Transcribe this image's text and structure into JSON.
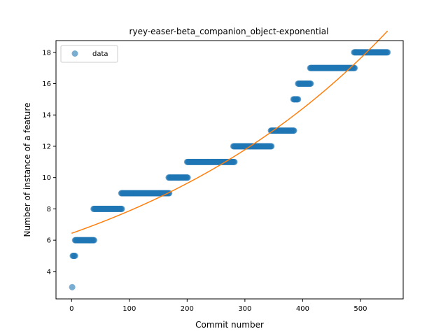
{
  "chart_data": {
    "type": "scatter",
    "title": "ryey-easer-beta_companion_object-exponential",
    "xlabel": "Commit number",
    "ylabel": "Number of instance of a feature",
    "xlim": [
      -27,
      574
    ],
    "ylim": [
      2.25,
      18.75
    ],
    "xticks": [
      0,
      100,
      200,
      300,
      400,
      500
    ],
    "yticks": [
      4,
      6,
      8,
      10,
      12,
      14,
      16,
      18
    ],
    "legend": {
      "position": "top-left",
      "entries": [
        "data"
      ]
    },
    "colors": {
      "data": "#1f77b4",
      "fit": "#ff7f0e"
    },
    "series": [
      {
        "name": "data",
        "kind": "points",
        "segments": [
          {
            "x_start": 1,
            "x_end": 1,
            "y": 3
          },
          {
            "x_start": 2,
            "x_end": 6,
            "y": 5
          },
          {
            "x_start": 6,
            "x_end": 39,
            "y": 6
          },
          {
            "x_start": 38,
            "x_end": 87,
            "y": 8
          },
          {
            "x_start": 86,
            "x_end": 169,
            "y": 9
          },
          {
            "x_start": 168,
            "x_end": 201,
            "y": 10
          },
          {
            "x_start": 200,
            "x_end": 282,
            "y": 11
          },
          {
            "x_start": 280,
            "x_end": 346,
            "y": 12
          },
          {
            "x_start": 345,
            "x_end": 385,
            "y": 13
          },
          {
            "x_start": 384,
            "x_end": 392,
            "y": 15
          },
          {
            "x_start": 392,
            "x_end": 414,
            "y": 16
          },
          {
            "x_start": 413,
            "x_end": 490,
            "y": 17
          },
          {
            "x_start": 489,
            "x_end": 547,
            "y": 18
          }
        ]
      },
      {
        "name": "fit",
        "kind": "line",
        "formula": "a*exp(b*x)",
        "a": 6.44,
        "b": 0.002013,
        "x_range": [
          0,
          547
        ]
      }
    ]
  }
}
